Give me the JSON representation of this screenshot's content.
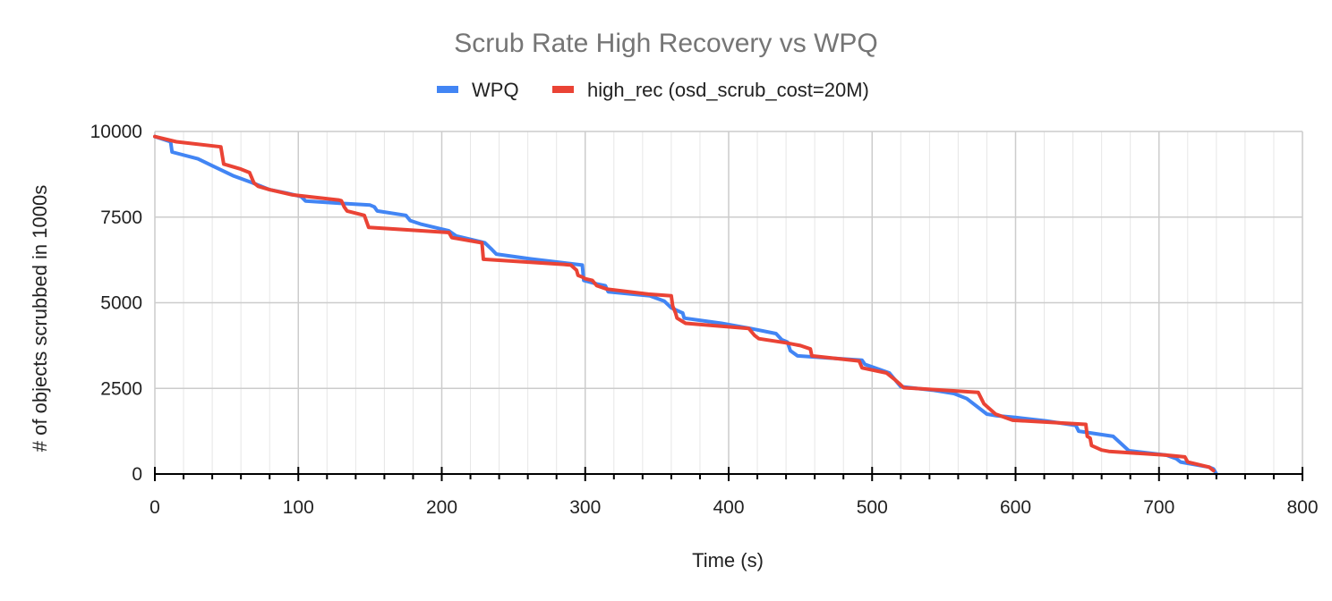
{
  "chart_data": {
    "type": "line",
    "title": "Scrub Rate High Recovery vs WPQ",
    "xlabel": "Time (s)",
    "ylabel": "# of objects scrubbed in 1000s",
    "xlim": [
      0,
      800
    ],
    "ylim": [
      0,
      10000
    ],
    "x_ticks": [
      0,
      100,
      200,
      300,
      400,
      500,
      600,
      700,
      800
    ],
    "y_ticks": [
      0,
      2500,
      5000,
      7500,
      10000
    ],
    "x_tick_labels": [
      "0",
      "100",
      "200",
      "300",
      "400",
      "500",
      "600",
      "700",
      "800"
    ],
    "y_tick_labels": [
      "0",
      "2500",
      "5000",
      "7500",
      "10000"
    ],
    "x_minor_step": 20,
    "legend_position": "top-center",
    "series": [
      {
        "name": "WPQ",
        "color": "#4285f4",
        "points": [
          [
            0,
            9850
          ],
          [
            11,
            9700
          ],
          [
            12,
            9400
          ],
          [
            30,
            9200
          ],
          [
            40,
            9000
          ],
          [
            55,
            8700
          ],
          [
            68,
            8500
          ],
          [
            80,
            8300
          ],
          [
            92,
            8200
          ],
          [
            102,
            8100
          ],
          [
            105,
            7970
          ],
          [
            130,
            7900
          ],
          [
            150,
            7850
          ],
          [
            153,
            7800
          ],
          [
            155,
            7680
          ],
          [
            175,
            7550
          ],
          [
            178,
            7400
          ],
          [
            185,
            7300
          ],
          [
            205,
            7100
          ],
          [
            210,
            6950
          ],
          [
            230,
            6750
          ],
          [
            235,
            6550
          ],
          [
            238,
            6420
          ],
          [
            262,
            6280
          ],
          [
            298,
            6100
          ],
          [
            299,
            5650
          ],
          [
            308,
            5550
          ],
          [
            314,
            5500
          ],
          [
            316,
            5320
          ],
          [
            345,
            5200
          ],
          [
            355,
            5050
          ],
          [
            360,
            4850
          ],
          [
            368,
            4700
          ],
          [
            369,
            4550
          ],
          [
            395,
            4400
          ],
          [
            415,
            4250
          ],
          [
            433,
            4100
          ],
          [
            437,
            3920
          ],
          [
            441,
            3850
          ],
          [
            443,
            3600
          ],
          [
            448,
            3450
          ],
          [
            465,
            3400
          ],
          [
            493,
            3320
          ],
          [
            495,
            3200
          ],
          [
            512,
            2950
          ],
          [
            517,
            2700
          ],
          [
            520,
            2550
          ],
          [
            542,
            2450
          ],
          [
            557,
            2350
          ],
          [
            566,
            2200
          ],
          [
            580,
            1750
          ],
          [
            587,
            1700
          ],
          [
            600,
            1650
          ],
          [
            621,
            1550
          ],
          [
            642,
            1420
          ],
          [
            644,
            1250
          ],
          [
            668,
            1100
          ],
          [
            679,
            680
          ],
          [
            705,
            550
          ],
          [
            712,
            450
          ],
          [
            715,
            350
          ],
          [
            735,
            200
          ],
          [
            738,
            150
          ],
          [
            740,
            0
          ]
        ]
      },
      {
        "name": "high_rec (osd_scrub_cost=20M)",
        "color": "#ea4335",
        "points": [
          [
            0,
            9850
          ],
          [
            15,
            9700
          ],
          [
            46,
            9550
          ],
          [
            48,
            9050
          ],
          [
            60,
            8900
          ],
          [
            66,
            8800
          ],
          [
            69,
            8500
          ],
          [
            72,
            8400
          ],
          [
            80,
            8300
          ],
          [
            96,
            8150
          ],
          [
            128,
            8000
          ],
          [
            130,
            7980
          ],
          [
            132,
            7800
          ],
          [
            134,
            7680
          ],
          [
            146,
            7550
          ],
          [
            149,
            7200
          ],
          [
            205,
            7050
          ],
          [
            207,
            6900
          ],
          [
            228,
            6750
          ],
          [
            229,
            6270
          ],
          [
            285,
            6120
          ],
          [
            290,
            6100
          ],
          [
            294,
            5950
          ],
          [
            295,
            5800
          ],
          [
            298,
            5750
          ],
          [
            300,
            5700
          ],
          [
            305,
            5650
          ],
          [
            308,
            5500
          ],
          [
            315,
            5400
          ],
          [
            344,
            5250
          ],
          [
            360,
            5200
          ],
          [
            361,
            4900
          ],
          [
            363,
            4700
          ],
          [
            364,
            4550
          ],
          [
            370,
            4400
          ],
          [
            414,
            4250
          ],
          [
            418,
            4050
          ],
          [
            421,
            3950
          ],
          [
            440,
            3830
          ],
          [
            450,
            3750
          ],
          [
            457,
            3650
          ],
          [
            458,
            3450
          ],
          [
            491,
            3300
          ],
          [
            493,
            3100
          ],
          [
            510,
            2950
          ],
          [
            516,
            2750
          ],
          [
            520,
            2600
          ],
          [
            522,
            2520
          ],
          [
            574,
            2380
          ],
          [
            578,
            2050
          ],
          [
            586,
            1750
          ],
          [
            598,
            1570
          ],
          [
            649,
            1450
          ],
          [
            650,
            1100
          ],
          [
            652,
            1050
          ],
          [
            653,
            830
          ],
          [
            660,
            700
          ],
          [
            665,
            660
          ],
          [
            705,
            550
          ],
          [
            718,
            500
          ],
          [
            720,
            350
          ],
          [
            735,
            200
          ],
          [
            738,
            100
          ]
        ]
      }
    ]
  }
}
